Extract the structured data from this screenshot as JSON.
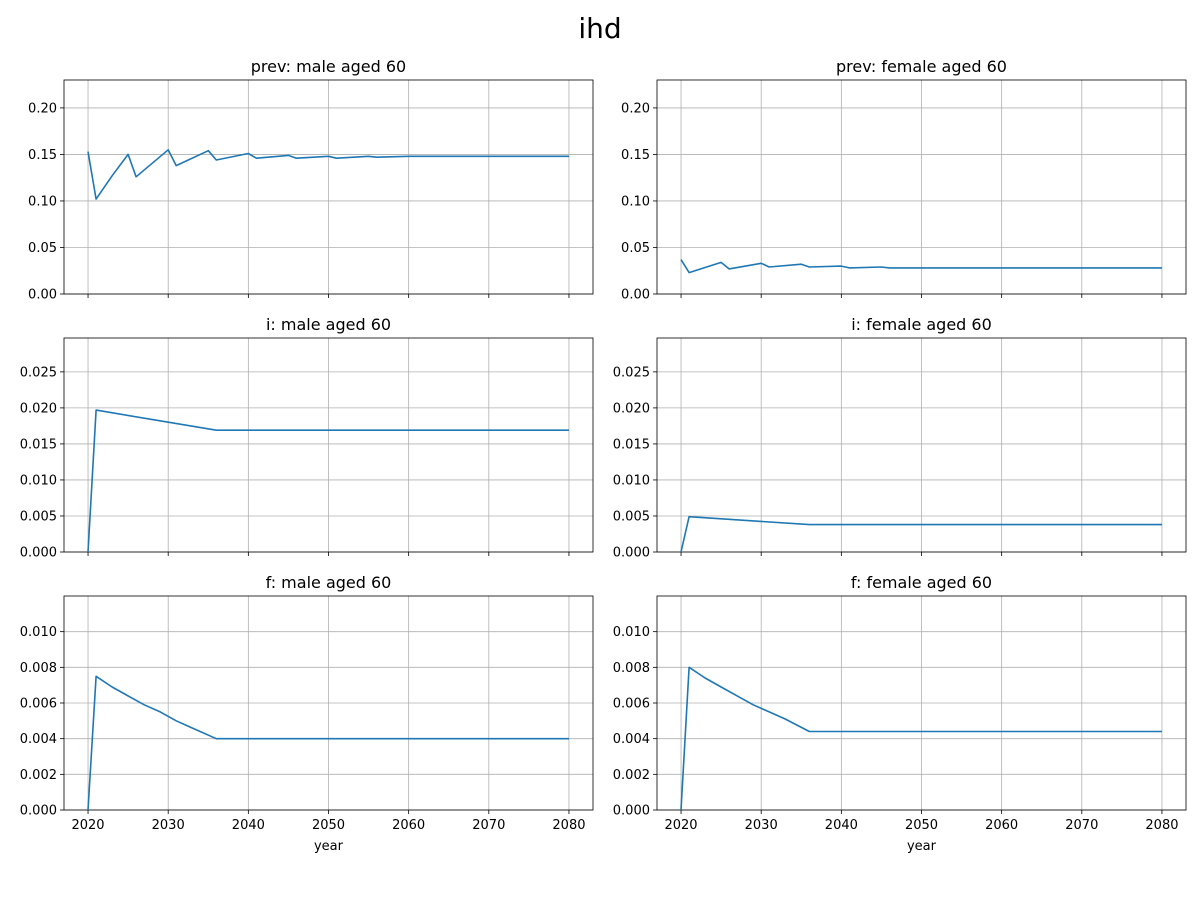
{
  "figure": {
    "title": "ihd",
    "line_color": "#1f77b4",
    "grid_color": "#b0b0b0"
  },
  "chart_data": [
    {
      "type": "line",
      "title": "prev: male aged 60",
      "xlabel": "",
      "ylabel": "",
      "xlim": [
        2017,
        2083
      ],
      "ylim": [
        0,
        0.23
      ],
      "xticks": [
        2020,
        2030,
        2040,
        2050,
        2060,
        2070,
        2080
      ],
      "yticks": [
        0,
        0.05,
        0.1,
        0.15,
        0.2
      ],
      "ytick_labels": [
        "0.00",
        "0.05",
        "0.10",
        "0.15",
        "0.20"
      ],
      "show_xtick_labels": false,
      "grid": true,
      "series": [
        {
          "x": [
            2020,
            2021,
            2023,
            2025,
            2026,
            2030,
            2031,
            2035,
            2036,
            2040,
            2041,
            2045,
            2046,
            2050,
            2051,
            2055,
            2056,
            2060,
            2065,
            2070,
            2080
          ],
          "y": [
            0.153,
            0.102,
            0.127,
            0.15,
            0.126,
            0.155,
            0.138,
            0.154,
            0.144,
            0.151,
            0.146,
            0.149,
            0.146,
            0.148,
            0.146,
            0.148,
            0.147,
            0.148,
            0.148,
            0.148,
            0.148
          ]
        }
      ]
    },
    {
      "type": "line",
      "title": "prev: female aged 60",
      "xlabel": "",
      "ylabel": "",
      "xlim": [
        2017,
        2083
      ],
      "ylim": [
        0,
        0.23
      ],
      "xticks": [
        2020,
        2030,
        2040,
        2050,
        2060,
        2070,
        2080
      ],
      "yticks": [
        0,
        0.05,
        0.1,
        0.15,
        0.2
      ],
      "ytick_labels": [
        "0.00",
        "0.05",
        "0.10",
        "0.15",
        "0.20"
      ],
      "show_xtick_labels": false,
      "grid": true,
      "series": [
        {
          "x": [
            2020,
            2021,
            2025,
            2026,
            2030,
            2031,
            2035,
            2036,
            2040,
            2041,
            2045,
            2046,
            2050,
            2051,
            2055,
            2060,
            2080
          ],
          "y": [
            0.037,
            0.023,
            0.034,
            0.027,
            0.033,
            0.029,
            0.032,
            0.029,
            0.03,
            0.028,
            0.029,
            0.028,
            0.028,
            0.028,
            0.028,
            0.028,
            0.028
          ]
        }
      ]
    },
    {
      "type": "line",
      "title": "i: male aged 60",
      "xlabel": "",
      "ylabel": "",
      "xlim": [
        2017,
        2083
      ],
      "ylim": [
        0,
        0.0297
      ],
      "xticks": [
        2020,
        2030,
        2040,
        2050,
        2060,
        2070,
        2080
      ],
      "yticks": [
        0,
        0.005,
        0.01,
        0.015,
        0.02,
        0.025
      ],
      "ytick_labels": [
        "0.000",
        "0.005",
        "0.010",
        "0.015",
        "0.020",
        "0.025"
      ],
      "show_xtick_labels": false,
      "grid": true,
      "series": [
        {
          "x": [
            2020,
            2021,
            2036,
            2080
          ],
          "y": [
            0.0,
            0.0197,
            0.0169,
            0.0169
          ]
        }
      ]
    },
    {
      "type": "line",
      "title": "i: female aged 60",
      "xlabel": "",
      "ylabel": "",
      "xlim": [
        2017,
        2083
      ],
      "ylim": [
        0,
        0.0297
      ],
      "xticks": [
        2020,
        2030,
        2040,
        2050,
        2060,
        2070,
        2080
      ],
      "yticks": [
        0,
        0.005,
        0.01,
        0.015,
        0.02,
        0.025
      ],
      "ytick_labels": [
        "0.000",
        "0.005",
        "0.010",
        "0.015",
        "0.020",
        "0.025"
      ],
      "show_xtick_labels": false,
      "grid": true,
      "series": [
        {
          "x": [
            2020,
            2021,
            2036,
            2080
          ],
          "y": [
            0.0,
            0.0049,
            0.0038,
            0.0038
          ]
        }
      ]
    },
    {
      "type": "line",
      "title": "f: male aged 60",
      "xlabel": "year",
      "ylabel": "",
      "xlim": [
        2017,
        2083
      ],
      "ylim": [
        0,
        0.012
      ],
      "xticks": [
        2020,
        2030,
        2040,
        2050,
        2060,
        2070,
        2080
      ],
      "xtick_labels": [
        "2020",
        "2030",
        "2040",
        "2050",
        "2060",
        "2070",
        "2080"
      ],
      "yticks": [
        0,
        0.002,
        0.004,
        0.006,
        0.008,
        0.01
      ],
      "ytick_labels": [
        "0.000",
        "0.002",
        "0.004",
        "0.006",
        "0.008",
        "0.010"
      ],
      "show_xtick_labels": true,
      "grid": true,
      "series": [
        {
          "x": [
            2020,
            2021,
            2023,
            2025,
            2027,
            2029,
            2031,
            2033,
            2036,
            2080
          ],
          "y": [
            0.0,
            0.0075,
            0.0069,
            0.0064,
            0.0059,
            0.0055,
            0.005,
            0.0046,
            0.004,
            0.004
          ]
        }
      ]
    },
    {
      "type": "line",
      "title": "f: female aged 60",
      "xlabel": "year",
      "ylabel": "",
      "xlim": [
        2017,
        2083
      ],
      "ylim": [
        0,
        0.012
      ],
      "xticks": [
        2020,
        2030,
        2040,
        2050,
        2060,
        2070,
        2080
      ],
      "xtick_labels": [
        "2020",
        "2030",
        "2040",
        "2050",
        "2060",
        "2070",
        "2080"
      ],
      "yticks": [
        0,
        0.002,
        0.004,
        0.006,
        0.008,
        0.01
      ],
      "ytick_labels": [
        "0.000",
        "0.002",
        "0.004",
        "0.006",
        "0.008",
        "0.010"
      ],
      "show_xtick_labels": true,
      "grid": true,
      "series": [
        {
          "x": [
            2020,
            2021,
            2023,
            2025,
            2027,
            2029,
            2031,
            2033,
            2036,
            2080
          ],
          "y": [
            0.0,
            0.008,
            0.0074,
            0.0069,
            0.0064,
            0.0059,
            0.0055,
            0.0051,
            0.0044,
            0.0044
          ]
        }
      ]
    }
  ]
}
